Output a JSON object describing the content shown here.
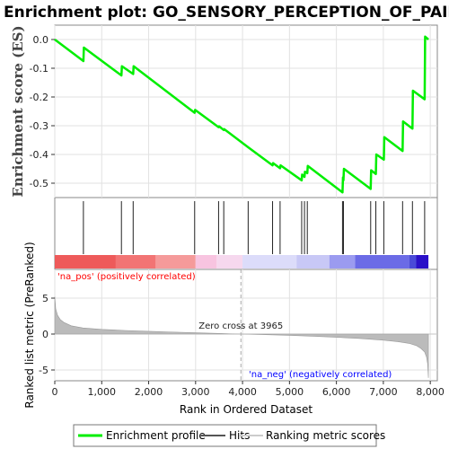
{
  "chart_data": {
    "type": "line",
    "title": "Enrichment plot: GO_SENSORY_PERCEPTION_OF_PAIN",
    "ylabel_top": "Enrichment score (ES)",
    "ylabel_bottom": "Ranked list metric (PreRanked)",
    "xlabel": "Rank in Ordered Dataset",
    "xlim": [
      0,
      8150
    ],
    "es_ylim": [
      -0.55,
      0.05
    ],
    "metric_ylim": [
      -6.5,
      9
    ],
    "x_ticks": [
      0,
      1000,
      2000,
      3000,
      4000,
      5000,
      6000,
      7000,
      8000
    ],
    "x_tick_labels": [
      "0",
      "1,000",
      "2,000",
      "3,000",
      "4,000",
      "5,000",
      "6,000",
      "7,000",
      "8,000"
    ],
    "es_ticks": [
      0.0,
      -0.1,
      -0.2,
      -0.3,
      -0.4,
      -0.5
    ],
    "es_tick_labels": [
      "0.0",
      "-0.1",
      "-0.2",
      "-0.3",
      "-0.4",
      "-0.5"
    ],
    "metric_ticks": [
      5,
      0,
      -5
    ],
    "metric_tick_labels": [
      "5",
      "0",
      "-5"
    ],
    "enrichment_profile": {
      "name": "Enrichment profile",
      "color": "#00ee00",
      "points": [
        [
          0,
          0.0
        ],
        [
          610,
          -0.075
        ],
        [
          620,
          -0.028
        ],
        [
          1420,
          -0.125
        ],
        [
          1430,
          -0.093
        ],
        [
          1670,
          -0.12
        ],
        [
          1680,
          -0.093
        ],
        [
          2980,
          -0.255
        ],
        [
          2990,
          -0.245
        ],
        [
          3490,
          -0.305
        ],
        [
          3500,
          -0.302
        ],
        [
          3600,
          -0.315
        ],
        [
          3610,
          -0.312
        ],
        [
          4120,
          -0.375
        ],
        [
          4640,
          -0.438
        ],
        [
          4650,
          -0.43
        ],
        [
          4800,
          -0.448
        ],
        [
          4810,
          -0.438
        ],
        [
          5260,
          -0.49
        ],
        [
          5270,
          -0.47
        ],
        [
          5320,
          -0.478
        ],
        [
          5330,
          -0.46
        ],
        [
          5380,
          -0.465
        ],
        [
          5390,
          -0.44
        ],
        [
          6130,
          -0.532
        ],
        [
          6140,
          -0.48
        ],
        [
          6150,
          -0.49
        ],
        [
          6160,
          -0.45
        ],
        [
          6730,
          -0.52
        ],
        [
          6740,
          -0.455
        ],
        [
          6840,
          -0.468
        ],
        [
          6850,
          -0.4
        ],
        [
          7010,
          -0.418
        ],
        [
          7020,
          -0.34
        ],
        [
          7410,
          -0.388
        ],
        [
          7420,
          -0.285
        ],
        [
          7620,
          -0.31
        ],
        [
          7630,
          -0.178
        ],
        [
          7880,
          -0.208
        ],
        [
          7890,
          0.01
        ],
        [
          7960,
          0.0
        ]
      ]
    },
    "hits": [
      610,
      1420,
      1670,
      2980,
      3490,
      3600,
      4120,
      4640,
      4800,
      5260,
      5320,
      5380,
      6130,
      6150,
      6730,
      6840,
      7010,
      7410,
      7620,
      7880
    ],
    "color_bar": [
      {
        "from": 0,
        "to": 1300,
        "color": "#ee5a5a"
      },
      {
        "from": 1300,
        "to": 2150,
        "color": "#f27474"
      },
      {
        "from": 2150,
        "to": 3000,
        "color": "#f59a9a"
      },
      {
        "from": 3000,
        "to": 3450,
        "color": "#f8c4e0"
      },
      {
        "from": 3450,
        "to": 4000,
        "color": "#f6d8ee"
      },
      {
        "from": 4000,
        "to": 5150,
        "color": "#dcdcfa"
      },
      {
        "from": 5150,
        "to": 5850,
        "color": "#c8c8f6"
      },
      {
        "from": 5850,
        "to": 6400,
        "color": "#9b9bf0"
      },
      {
        "from": 6400,
        "to": 7550,
        "color": "#6b6be6"
      },
      {
        "from": 7550,
        "to": 7700,
        "color": "#4a4ad8"
      },
      {
        "from": 7700,
        "to": 7960,
        "color": "#2a10c8"
      }
    ],
    "ranked_metric": {
      "name": "Ranked metric scores",
      "color": "#bbbbbb",
      "points": [
        [
          0,
          5.2
        ],
        [
          20,
          3.5
        ],
        [
          60,
          2.6
        ],
        [
          120,
          2.0
        ],
        [
          200,
          1.6
        ],
        [
          350,
          1.15
        ],
        [
          600,
          0.85
        ],
        [
          1000,
          0.65
        ],
        [
          1500,
          0.5
        ],
        [
          2000,
          0.38
        ],
        [
          2500,
          0.28
        ],
        [
          3000,
          0.18
        ],
        [
          3500,
          0.08
        ],
        [
          3965,
          0.0
        ],
        [
          4500,
          -0.08
        ],
        [
          5000,
          -0.18
        ],
        [
          5500,
          -0.3
        ],
        [
          6000,
          -0.45
        ],
        [
          6500,
          -0.62
        ],
        [
          7000,
          -0.85
        ],
        [
          7300,
          -1.05
        ],
        [
          7550,
          -1.3
        ],
        [
          7700,
          -1.6
        ],
        [
          7800,
          -2.0
        ],
        [
          7880,
          -2.5
        ],
        [
          7920,
          -3.2
        ],
        [
          7945,
          -4.2
        ],
        [
          7960,
          -6.1
        ]
      ]
    },
    "zero_cross": 3965,
    "zero_cross_label": "Zero cross at 3965",
    "pos_label": "'na_pos' (positively correlated)",
    "neg_label": "'na_neg' (negatively correlated)",
    "pos_color": "#ff0000",
    "neg_color": "#0000ff",
    "legend": {
      "placement": "bottom",
      "items": [
        {
          "label": "Enrichment profile",
          "color": "#00ee00"
        },
        {
          "label": "Hits",
          "color": "#555555"
        },
        {
          "label": "Ranking metric scores",
          "color": "#cccccc"
        }
      ]
    }
  }
}
